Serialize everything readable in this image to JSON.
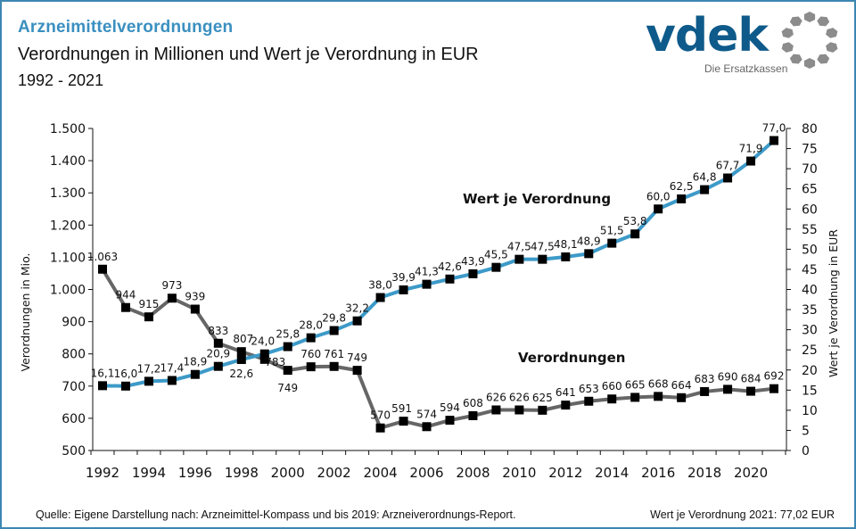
{
  "header": {
    "title": "Arzneimittelverordnungen",
    "subtitle": "Verordnungen in Millionen und Wert je Verordnung in EUR",
    "period": "1992 - 2021"
  },
  "logo": {
    "wordmark": "vdek",
    "tagline": "Die Ersatzkassen",
    "icon": "ring-of-hexagons-icon"
  },
  "footer": {
    "source": "Quelle: Eigene Darstellung nach: Arzneimittel-Kompass und bis 2019: Arzneiverordnungs-Report.",
    "note": "Wert je Verordnung 2021: 77,02 EUR"
  },
  "colors": {
    "title_blue": "#3a8fc0",
    "wert_line": "#3d9ac8",
    "verordnungen_line": "#666666",
    "marker": "#000000",
    "border": "#3d87b2"
  },
  "chart_data": {
    "type": "line",
    "title": "Arzneimittelverordnungen",
    "x": [
      1992,
      1993,
      1994,
      1995,
      1996,
      1997,
      1998,
      1999,
      2000,
      2001,
      2002,
      2003,
      2004,
      2005,
      2006,
      2007,
      2008,
      2009,
      2010,
      2011,
      2012,
      2013,
      2014,
      2015,
      2016,
      2017,
      2018,
      2019,
      2020,
      2021
    ],
    "x_tick_labels": [
      "1992",
      "1994",
      "1996",
      "1998",
      "2000",
      "2002",
      "2004",
      "2006",
      "2008",
      "2010",
      "2012",
      "2014",
      "2016",
      "2018",
      "2020"
    ],
    "xlabel": "",
    "y_left": {
      "label": "Verordnungen in Mio.",
      "range": [
        500,
        1500
      ],
      "tick_labels": [
        "500",
        "600",
        "700",
        "800",
        "900",
        "1.000",
        "1.100",
        "1.200",
        "1.300",
        "1.400",
        "1.500"
      ],
      "ticks": [
        500,
        600,
        700,
        800,
        900,
        1000,
        1100,
        1200,
        1300,
        1400,
        1500
      ]
    },
    "y_right": {
      "label": "Wert je Verordnung in EUR",
      "range": [
        0,
        80
      ],
      "tick_labels": [
        "0",
        "5",
        "10",
        "15",
        "20",
        "25",
        "30",
        "35",
        "40",
        "45",
        "50",
        "55",
        "60",
        "65",
        "70",
        "75",
        "80"
      ],
      "ticks": [
        0,
        5,
        10,
        15,
        20,
        25,
        30,
        35,
        40,
        45,
        50,
        55,
        60,
        65,
        70,
        75,
        80
      ]
    },
    "grid": false,
    "series": [
      {
        "name": "Verordnungen",
        "axis": "left",
        "values": [
          1063,
          944,
          915,
          973,
          939,
          833,
          807,
          783,
          749,
          760,
          761,
          749,
          570,
          591,
          574,
          594,
          608,
          626,
          626,
          625,
          641,
          653,
          660,
          665,
          668,
          664,
          683,
          690,
          684,
          692
        ],
        "labels": [
          "1.063",
          "944",
          "915",
          "973",
          "939",
          "833",
          "807",
          "783",
          "749",
          "760",
          "761",
          "749",
          "570",
          "591",
          "574",
          "594",
          "608",
          "626",
          "626",
          "625",
          "641",
          "653",
          "660",
          "665",
          "668",
          "664",
          "683",
          "690",
          "684",
          "692"
        ],
        "annotation": "Verordnungen"
      },
      {
        "name": "Wert je Verordnung",
        "axis": "right",
        "values": [
          16.1,
          16.0,
          17.2,
          17.4,
          18.9,
          20.9,
          22.6,
          24.0,
          25.8,
          28.0,
          29.8,
          32.2,
          38.0,
          39.9,
          41.3,
          42.6,
          43.9,
          45.5,
          47.5,
          47.5,
          48.1,
          48.9,
          51.5,
          53.8,
          60.0,
          62.5,
          64.8,
          67.7,
          71.9,
          77.0
        ],
        "labels": [
          "16,1",
          "16,0",
          "17,2",
          "17,4",
          "18,9",
          "20,9",
          "22,6",
          "24,0",
          "25,8",
          "28,0",
          "29,8",
          "32,2",
          "38,0",
          "39,9",
          "41,3",
          "42,6",
          "43,9",
          "45,5",
          "47,5",
          "47,5",
          "48,1",
          "48,9",
          "51,5",
          "53,8",
          "60,0",
          "62,5",
          "64,8",
          "67,7",
          "71,9",
          "77,0"
        ],
        "annotation": "Wert je Verordnung"
      }
    ]
  }
}
